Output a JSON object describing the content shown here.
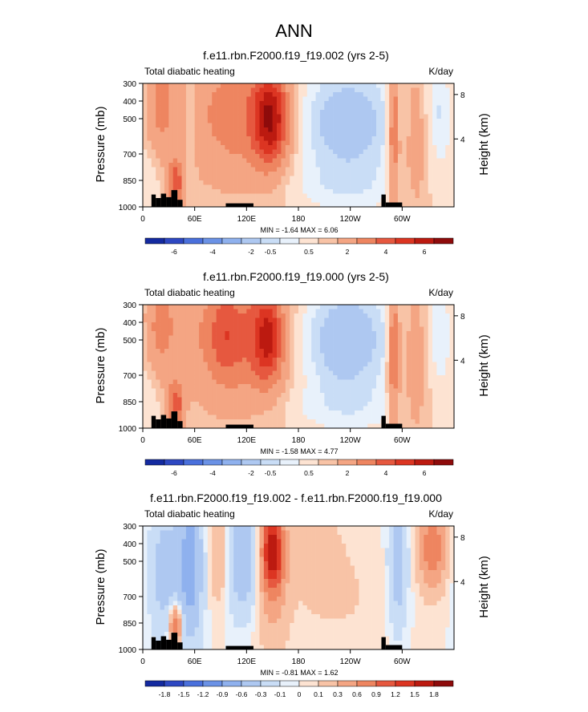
{
  "page": {
    "title": "ANN"
  },
  "colors": {
    "positive": [
      "#fde3d2",
      "#f8c3a6",
      "#f4a583",
      "#ee8560",
      "#e6583f",
      "#dc3522",
      "#bc1a10",
      "#8e0b0b"
    ],
    "negative": [
      "#e8f1fb",
      "#c9ddf6",
      "#aec8f1",
      "#8fb1ee",
      "#6b92e6",
      "#4a70dc",
      "#2e48c2",
      "#142aa0"
    ],
    "land": "#000000"
  },
  "chart_data": [
    {
      "type": "heatmap",
      "title": "f.e11.rbn.F2000.f19_f19.002 (yrs 2-5)",
      "left_label": "Total diabatic heating",
      "units": "K/day",
      "ylabel": "Pressure (mb)",
      "ylabel_right": "Height (km)",
      "x_ticks": [
        "0",
        "60E",
        "120E",
        "180",
        "120W",
        "60W"
      ],
      "x_tick_values": [
        0,
        60,
        120,
        180,
        240,
        300
      ],
      "xlim": [
        0,
        360
      ],
      "y_ticks": [
        "300",
        "400",
        "500",
        "700",
        "850",
        "1000"
      ],
      "y_tick_values": [
        300,
        400,
        500,
        700,
        850,
        1000
      ],
      "ylim": [
        1000,
        300
      ],
      "right_ticks": [
        "8",
        "4"
      ],
      "right_tick_values": [
        8,
        4
      ],
      "min": "-1.64",
      "max": "6.06",
      "stats_text": "MIN = -1.64  MAX =  6.06",
      "colorbar_levels": [
        "-6",
        "-4",
        "-2",
        "-0.5",
        "0.5",
        "2",
        "4",
        "6"
      ],
      "field": {
        "base": 0.6,
        "blobs": [
          {
            "lon": 148,
            "p": 500,
            "slon": 14,
            "sp": 180,
            "amp": 4.8
          },
          {
            "lon": 112,
            "p": 480,
            "slon": 42,
            "sp": 260,
            "amp": 2.0
          },
          {
            "lon": 20,
            "p": 420,
            "slon": 14,
            "sp": 220,
            "amp": 1.6
          },
          {
            "lon": 38,
            "p": 870,
            "slon": 6,
            "sp": 90,
            "amp": 3.2
          },
          {
            "lon": 290,
            "p": 550,
            "slon": 5,
            "sp": 320,
            "amp": 2.8
          },
          {
            "lon": 315,
            "p": 620,
            "slon": 10,
            "sp": 300,
            "amp": 1.3
          },
          {
            "lon": 235,
            "p": 520,
            "slon": 45,
            "sp": 240,
            "amp": -2.2
          },
          {
            "lon": 235,
            "p": 900,
            "slon": 60,
            "sp": 100,
            "amp": -0.6
          },
          {
            "lon": 345,
            "p": 450,
            "slon": 12,
            "sp": 220,
            "amp": -1.1
          },
          {
            "lon": 55,
            "p": 460,
            "slon": 6,
            "sp": 200,
            "amp": -0.8
          },
          {
            "lon": 8,
            "p": 820,
            "slon": 10,
            "sp": 140,
            "amp": -0.6
          }
        ]
      }
    },
    {
      "type": "heatmap",
      "title": "f.e11.rbn.F2000.f19_f19.000 (yrs 2-5)",
      "left_label": "Total diabatic heating",
      "units": "K/day",
      "ylabel": "Pressure (mb)",
      "ylabel_right": "Height (km)",
      "x_ticks": [
        "0",
        "60E",
        "120E",
        "180",
        "120W",
        "60W"
      ],
      "x_tick_values": [
        0,
        60,
        120,
        180,
        240,
        300
      ],
      "xlim": [
        0,
        360
      ],
      "y_ticks": [
        "300",
        "400",
        "500",
        "700",
        "850",
        "1000"
      ],
      "y_tick_values": [
        300,
        400,
        500,
        700,
        850,
        1000
      ],
      "ylim": [
        1000,
        300
      ],
      "right_ticks": [
        "8",
        "4"
      ],
      "right_tick_values": [
        8,
        4
      ],
      "min": "-1.58",
      "max": "4.77",
      "stats_text": "MIN = -1.58  MAX =  4.77",
      "colorbar_levels": [
        "-6",
        "-4",
        "-2",
        "-0.5",
        "0.5",
        "2",
        "4",
        "6"
      ],
      "field": {
        "base": 0.6,
        "blobs": [
          {
            "lon": 145,
            "p": 490,
            "slon": 12,
            "sp": 170,
            "amp": 3.6
          },
          {
            "lon": 110,
            "p": 480,
            "slon": 40,
            "sp": 260,
            "amp": 2.4
          },
          {
            "lon": 95,
            "p": 470,
            "slon": 12,
            "sp": 150,
            "amp": 1.2
          },
          {
            "lon": 20,
            "p": 420,
            "slon": 14,
            "sp": 220,
            "amp": 1.6
          },
          {
            "lon": 38,
            "p": 870,
            "slon": 6,
            "sp": 90,
            "amp": 3.0
          },
          {
            "lon": 290,
            "p": 550,
            "slon": 5,
            "sp": 320,
            "amp": 2.8
          },
          {
            "lon": 315,
            "p": 620,
            "slon": 10,
            "sp": 300,
            "amp": 1.3
          },
          {
            "lon": 235,
            "p": 500,
            "slon": 40,
            "sp": 240,
            "amp": -2.3
          },
          {
            "lon": 235,
            "p": 900,
            "slon": 60,
            "sp": 100,
            "amp": -0.6
          },
          {
            "lon": 345,
            "p": 450,
            "slon": 12,
            "sp": 220,
            "amp": -1.1
          },
          {
            "lon": 8,
            "p": 820,
            "slon": 10,
            "sp": 140,
            "amp": -0.6
          }
        ]
      }
    },
    {
      "type": "heatmap",
      "title": "f.e11.rbn.F2000.f19_f19.002 - f.e11.rbn.F2000.f19_f19.000",
      "left_label": "Total diabatic heating",
      "units": "K/day",
      "ylabel": "Pressure (mb)",
      "ylabel_right": "Height (km)",
      "x_ticks": [
        "0",
        "60E",
        "120E",
        "180",
        "120W",
        "60W"
      ],
      "x_tick_values": [
        0,
        60,
        120,
        180,
        240,
        300
      ],
      "xlim": [
        0,
        360
      ],
      "y_ticks": [
        "300",
        "400",
        "500",
        "700",
        "850",
        "1000"
      ],
      "y_tick_values": [
        300,
        400,
        500,
        700,
        850,
        1000
      ],
      "ylim": [
        1000,
        300
      ],
      "right_ticks": [
        "8",
        "4"
      ],
      "right_tick_values": [
        8,
        4
      ],
      "min": "-0.81",
      "max": "1.62",
      "stats_text": "MIN = -0.81  MAX =  1.62",
      "colorbar_levels": [
        "-1.8",
        "-1.5",
        "-1.2",
        "-0.9",
        "-0.6",
        "-0.3",
        "-0.1",
        "0",
        "0.1",
        "0.3",
        "0.6",
        "0.9",
        "1.2",
        "1.5",
        "1.8"
      ],
      "field": {
        "base": 0.0,
        "blobs": [
          {
            "lon": 150,
            "p": 440,
            "slon": 9,
            "sp": 160,
            "amp": 1.6
          },
          {
            "lon": 150,
            "p": 650,
            "slon": 14,
            "sp": 300,
            "amp": 0.3
          },
          {
            "lon": 55,
            "p": 520,
            "slon": 10,
            "sp": 300,
            "amp": -0.8
          },
          {
            "lon": 25,
            "p": 560,
            "slon": 12,
            "sp": 260,
            "amp": -0.45
          },
          {
            "lon": 115,
            "p": 480,
            "slon": 14,
            "sp": 220,
            "amp": -0.6
          },
          {
            "lon": 90,
            "p": 470,
            "slon": 10,
            "sp": 200,
            "amp": 0.35
          },
          {
            "lon": 38,
            "p": 860,
            "slon": 5,
            "sp": 80,
            "amp": 1.0
          },
          {
            "lon": 335,
            "p": 420,
            "slon": 10,
            "sp": 160,
            "amp": 0.9
          },
          {
            "lon": 295,
            "p": 520,
            "slon": 8,
            "sp": 260,
            "amp": -0.5
          },
          {
            "lon": 200,
            "p": 450,
            "slon": 20,
            "sp": 220,
            "amp": 0.15
          },
          {
            "lon": 240,
            "p": 700,
            "slon": 40,
            "sp": 300,
            "amp": 0.1
          }
        ]
      }
    }
  ]
}
